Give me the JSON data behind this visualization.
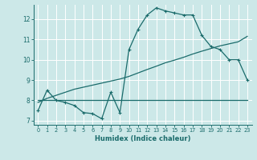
{
  "bg_color": "#cce8e8",
  "grid_color": "#ffffff",
  "line_color": "#1a6b6b",
  "xlabel": "Humidex (Indice chaleur)",
  "xlim": [
    -0.5,
    23.5
  ],
  "ylim": [
    6.8,
    12.7
  ],
  "yticks": [
    7,
    8,
    9,
    10,
    11,
    12
  ],
  "xticks": [
    0,
    1,
    2,
    3,
    4,
    5,
    6,
    7,
    8,
    9,
    10,
    11,
    12,
    13,
    14,
    15,
    16,
    17,
    18,
    19,
    20,
    21,
    22,
    23
  ],
  "curve_main_x": [
    0,
    1,
    2,
    3,
    4,
    5,
    6,
    7,
    8,
    9,
    10,
    11,
    12,
    13,
    14,
    15,
    16,
    17,
    18,
    19,
    20,
    21,
    22,
    23
  ],
  "curve_main_y": [
    7.5,
    8.5,
    8.0,
    7.9,
    7.75,
    7.4,
    7.35,
    7.1,
    8.4,
    7.4,
    10.5,
    11.5,
    12.2,
    12.55,
    12.4,
    12.3,
    12.2,
    12.2,
    11.2,
    10.65,
    10.5,
    10.0,
    10.0,
    9.0
  ],
  "curve_flat_x": [
    0,
    1,
    2,
    3,
    4,
    5,
    6,
    7,
    8,
    9,
    10,
    11,
    12,
    13,
    14,
    15,
    16,
    17,
    18,
    19,
    20,
    21,
    22,
    23
  ],
  "curve_flat_y": [
    8.0,
    8.0,
    8.0,
    8.0,
    8.0,
    8.0,
    8.0,
    8.0,
    8.0,
    8.0,
    8.0,
    8.0,
    8.0,
    8.0,
    8.0,
    8.0,
    8.0,
    8.0,
    8.0,
    8.0,
    8.0,
    8.0,
    8.0,
    8.0
  ],
  "curve_diag_x": [
    0,
    1,
    2,
    3,
    4,
    5,
    6,
    7,
    8,
    9,
    10,
    11,
    12,
    13,
    14,
    15,
    16,
    17,
    18,
    19,
    20,
    21,
    22,
    23
  ],
  "curve_diag_y": [
    7.9,
    8.1,
    8.25,
    8.4,
    8.55,
    8.65,
    8.75,
    8.85,
    8.95,
    9.05,
    9.18,
    9.35,
    9.52,
    9.68,
    9.85,
    9.98,
    10.12,
    10.28,
    10.42,
    10.55,
    10.68,
    10.78,
    10.88,
    11.15
  ]
}
